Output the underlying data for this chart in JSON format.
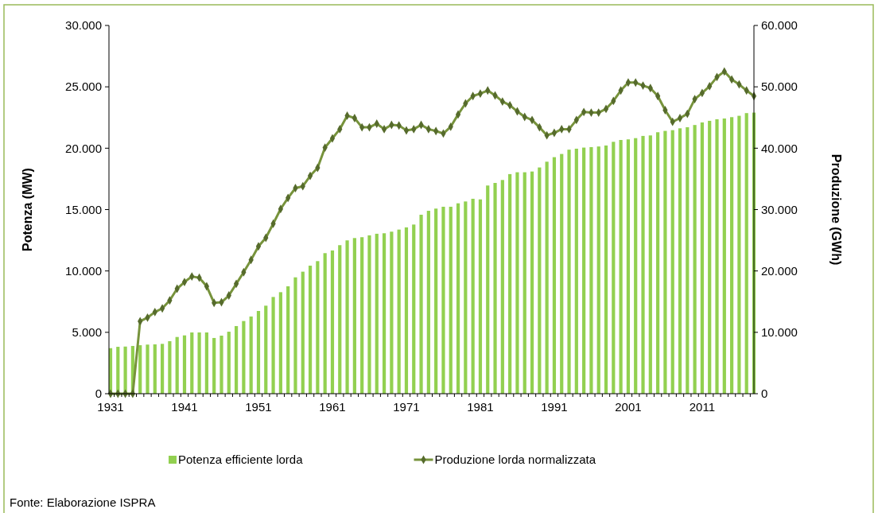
{
  "chart_data": {
    "type": "bar",
    "ylabel": "Potenza (MW)",
    "y2label": "Produzione (GWh)",
    "annotations": [
      "Fonte: Elaborazione ISPRA"
    ],
    "categories": [
      "1931",
      null,
      null,
      null,
      null,
      null,
      null,
      null,
      null,
      null,
      "1941",
      null,
      null,
      null,
      null,
      null,
      null,
      null,
      null,
      null,
      "1951",
      null,
      null,
      null,
      null,
      null,
      null,
      null,
      null,
      null,
      "1961",
      null,
      null,
      null,
      null,
      null,
      null,
      null,
      null,
      null,
      "1971",
      null,
      null,
      null,
      null,
      null,
      null,
      null,
      null,
      null,
      "1981",
      null,
      null,
      null,
      null,
      null,
      null,
      null,
      null,
      null,
      "1991",
      null,
      null,
      null,
      null,
      null,
      null,
      null,
      null,
      null,
      "2001",
      null,
      null,
      null,
      null,
      null,
      null,
      null,
      null,
      null,
      "2011",
      null,
      null,
      null,
      null,
      null,
      null,
      null
    ],
    "series": [
      {
        "name": "Potenza efficiente lorda",
        "color": "#92d050",
        "values": [
          3710,
          3820,
          3840,
          3890,
          3950,
          4000,
          4020,
          4060,
          4280,
          4620,
          4750,
          4990,
          4990,
          4990,
          4540,
          4730,
          5050,
          5510,
          5920,
          6290,
          6740,
          7170,
          7880,
          8270,
          8750,
          9480,
          9940,
          10430,
          10800,
          11450,
          11670,
          12100,
          12490,
          12680,
          12750,
          12900,
          13030,
          13070,
          13200,
          13370,
          13550,
          13780,
          14580,
          14900,
          15080,
          15230,
          15230,
          15510,
          15660,
          15880,
          15830,
          16960,
          17170,
          17410,
          17890,
          18040,
          18040,
          18100,
          18430,
          18900,
          19270,
          19530,
          19880,
          19960,
          20050,
          20090,
          20140,
          20220,
          20520,
          20670,
          20720,
          20820,
          21000,
          21040,
          21300,
          21410,
          21470,
          21620,
          21710,
          21890,
          22100,
          22230,
          22360,
          22420,
          22530,
          22640,
          22860,
          22900
        ]
      },
      {
        "name": "Produzione lorda normalizzata",
        "type": "line",
        "axis": "y2",
        "color": "#77933c",
        "marker": "diamond",
        "values": [
          0,
          0,
          0,
          0,
          11800,
          12400,
          13300,
          13900,
          15200,
          17100,
          18200,
          19100,
          18900,
          17500,
          14800,
          14900,
          16000,
          17900,
          19800,
          21800,
          24000,
          25400,
          27700,
          30100,
          31900,
          33500,
          33800,
          35500,
          36800,
          40100,
          41600,
          43100,
          45300,
          44900,
          43400,
          43400,
          44000,
          43100,
          43800,
          43700,
          42900,
          43100,
          43800,
          43100,
          42800,
          42400,
          43500,
          45500,
          47300,
          48500,
          48900,
          49400,
          48600,
          47600,
          47000,
          46000,
          45100,
          44600,
          43400,
          42100,
          42500,
          43100,
          43100,
          44600,
          45900,
          45800,
          45800,
          46400,
          47700,
          49400,
          50700,
          50700,
          50200,
          49800,
          48500,
          46200,
          44300,
          44900,
          45600,
          48000,
          49000,
          50100,
          51600,
          52500,
          51200,
          50400,
          49400,
          48500
        ]
      }
    ],
    "ylim": [
      0,
      30000
    ],
    "yticks": [
      0,
      {
        "value": 5000,
        "label": "5.000"
      },
      {
        "value": 10000,
        "label": "10.000"
      },
      {
        "value": 15000,
        "label": "15.000"
      },
      {
        "value": 20000,
        "label": "20.000"
      },
      {
        "value": 25000,
        "label": "25.000"
      },
      {
        "value": 30000,
        "label": "30.000"
      }
    ],
    "y2lim": [
      0,
      60000
    ],
    "y2ticks": [
      0,
      {
        "value": 10000,
        "label": "10.000"
      },
      {
        "value": 20000,
        "label": "20.000"
      },
      {
        "value": 30000,
        "label": "30.000"
      },
      {
        "value": 40000,
        "label": "40.000"
      },
      {
        "value": 50000,
        "label": "50.000"
      },
      {
        "value": 60000,
        "label": "60.000"
      }
    ],
    "legend": "bottom",
    "grid": false
  }
}
